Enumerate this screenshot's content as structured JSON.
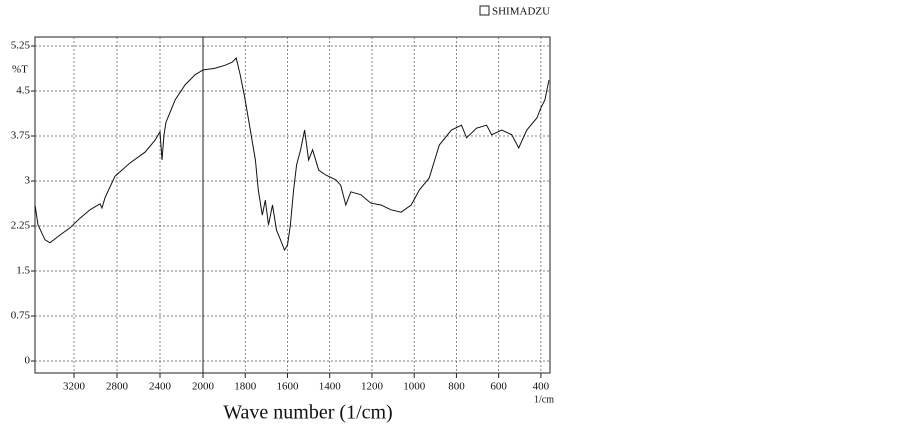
{
  "chart_data": {
    "type": "line",
    "brand": "SHIMADZU",
    "ylabel": "%T",
    "xlabel": "Wave number (1/cm)",
    "xunit": "1/cm",
    "x_reversed": true,
    "x_break": 2000,
    "xlim": [
      3563,
      357
    ],
    "ylim": [
      -0.2,
      5.4
    ],
    "xticks": [
      3200,
      2800,
      2400,
      2000,
      1800,
      1600,
      1400,
      1200,
      1000,
      800,
      600,
      400
    ],
    "yticks": [
      0,
      0.75,
      1.5,
      2.25,
      3,
      3.75,
      4.5,
      5.25
    ],
    "grid": true,
    "series": [
      {
        "name": "%T",
        "color": "#111111",
        "x": [
          3563,
          3535,
          3470,
          3423,
          3330,
          3237,
          3144,
          3051,
          2958,
          2940,
          2912,
          2819,
          2679,
          2540,
          2447,
          2400,
          2381,
          2363,
          2344,
          2260,
          2167,
          2074,
          2000,
          1943,
          1895,
          1862,
          1843,
          1824,
          1800,
          1776,
          1752,
          1738,
          1719,
          1705,
          1690,
          1671,
          1652,
          1633,
          1614,
          1600,
          1586,
          1571,
          1557,
          1538,
          1519,
          1500,
          1481,
          1452,
          1419,
          1371,
          1348,
          1324,
          1300,
          1252,
          1205,
          1157,
          1110,
          1062,
          1014,
          976,
          929,
          881,
          824,
          776,
          752,
          705,
          657,
          633,
          586,
          538,
          505,
          467,
          419,
          400,
          381,
          362
        ],
        "values": [
          2.6,
          2.27,
          2.02,
          1.97,
          2.1,
          2.22,
          2.38,
          2.52,
          2.62,
          2.55,
          2.72,
          3.08,
          3.3,
          3.48,
          3.68,
          3.82,
          3.35,
          3.77,
          3.98,
          4.35,
          4.6,
          4.77,
          4.85,
          4.88,
          4.93,
          4.98,
          5.05,
          4.77,
          4.35,
          3.85,
          3.35,
          2.85,
          2.43,
          2.68,
          2.27,
          2.6,
          2.18,
          2.02,
          1.85,
          1.93,
          2.27,
          2.85,
          3.27,
          3.52,
          3.85,
          3.35,
          3.52,
          3.18,
          3.1,
          3.02,
          2.93,
          2.6,
          2.82,
          2.77,
          2.63,
          2.6,
          2.52,
          2.48,
          2.6,
          2.85,
          3.05,
          3.6,
          3.85,
          3.93,
          3.72,
          3.88,
          3.93,
          3.77,
          3.85,
          3.77,
          3.55,
          3.85,
          4.05,
          4.22,
          4.35,
          4.68
        ]
      }
    ]
  }
}
